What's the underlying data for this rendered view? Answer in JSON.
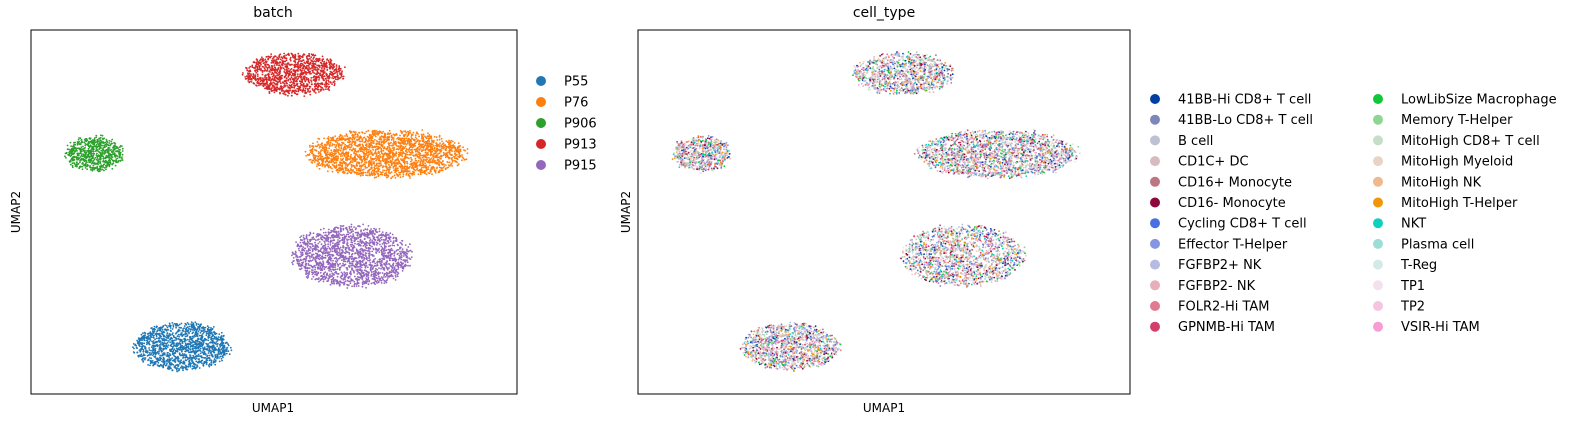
{
  "chart_data": [
    {
      "type": "scatter",
      "title": "batch",
      "xlabel": "UMAP1",
      "ylabel": "UMAP2",
      "xticks": false,
      "yticks": false,
      "legend_position": "right",
      "legend_columns": 1,
      "clusters": [
        {
          "label": "P55",
          "color": "#1f77b4",
          "cx": 0.31,
          "cy": 0.13,
          "rx": 0.1,
          "ry": 0.065,
          "n": 1400
        },
        {
          "label": "P76",
          "color": "#ff7f0e",
          "cx": 0.73,
          "cy": 0.66,
          "rx": 0.165,
          "ry": 0.065,
          "n": 2200
        },
        {
          "label": "P906",
          "color": "#2ca02c",
          "cx": 0.13,
          "cy": 0.66,
          "rx": 0.06,
          "ry": 0.048,
          "n": 700
        },
        {
          "label": "P913",
          "color": "#d62728",
          "cx": 0.54,
          "cy": 0.88,
          "rx": 0.105,
          "ry": 0.058,
          "n": 1200
        },
        {
          "label": "P915",
          "color": "#9467bd",
          "cx": 0.66,
          "cy": 0.38,
          "rx": 0.125,
          "ry": 0.085,
          "n": 1800
        }
      ],
      "legend": [
        {
          "label": "P55",
          "color": "#1f77b4"
        },
        {
          "label": "P76",
          "color": "#ff7f0e"
        },
        {
          "label": "P906",
          "color": "#2ca02c"
        },
        {
          "label": "P913",
          "color": "#d62728"
        },
        {
          "label": "P915",
          "color": "#9467bd"
        }
      ]
    },
    {
      "type": "scatter",
      "title": "cell_type",
      "xlabel": "UMAP1",
      "ylabel": "UMAP2",
      "xticks": false,
      "yticks": false,
      "legend_position": "right",
      "legend_columns": 2,
      "clusters": [
        {
          "batch": "P55",
          "cx": 0.31,
          "cy": 0.13,
          "rx": 0.1,
          "ry": 0.065,
          "n": 1400
        },
        {
          "batch": "P76",
          "cx": 0.73,
          "cy": 0.66,
          "rx": 0.165,
          "ry": 0.065,
          "n": 2200
        },
        {
          "batch": "P906",
          "cx": 0.13,
          "cy": 0.66,
          "rx": 0.06,
          "ry": 0.048,
          "n": 700
        },
        {
          "batch": "P913",
          "cx": 0.54,
          "cy": 0.88,
          "rx": 0.105,
          "ry": 0.058,
          "n": 1200
        },
        {
          "batch": "P915",
          "cx": 0.66,
          "cy": 0.38,
          "rx": 0.125,
          "ry": 0.085,
          "n": 1800
        }
      ],
      "legend": [
        {
          "label": "41BB-Hi CD8+ T cell",
          "color": "#023fa5"
        },
        {
          "label": "41BB-Lo CD8+ T cell",
          "color": "#7d87b9"
        },
        {
          "label": "B cell",
          "color": "#bec1d4"
        },
        {
          "label": "CD1C+ DC",
          "color": "#d6bcc0"
        },
        {
          "label": "CD16+ Monocyte",
          "color": "#bb7784"
        },
        {
          "label": "CD16- Monocyte",
          "color": "#8e063b"
        },
        {
          "label": "Cycling CD8+ T cell",
          "color": "#4a6fe3"
        },
        {
          "label": "Effector T-Helper",
          "color": "#8595e1"
        },
        {
          "label": "FGFBP2+ NK",
          "color": "#b5bbe3"
        },
        {
          "label": "FGFBP2- NK",
          "color": "#e6afb9"
        },
        {
          "label": "FOLR2-Hi TAM",
          "color": "#e07b91"
        },
        {
          "label": "GPNMB-Hi TAM",
          "color": "#d33f6a"
        },
        {
          "label": "LowLibSize Macrophage",
          "color": "#11c638"
        },
        {
          "label": "Memory T-Helper",
          "color": "#8dd593"
        },
        {
          "label": "MitoHigh CD8+ T cell",
          "color": "#c6dec7"
        },
        {
          "label": "MitoHigh Myeloid",
          "color": "#ead3c6"
        },
        {
          "label": "MitoHigh NK",
          "color": "#f0b98d"
        },
        {
          "label": "MitoHigh T-Helper",
          "color": "#ef9708"
        },
        {
          "label": "NKT",
          "color": "#0fcfc0"
        },
        {
          "label": "Plasma cell",
          "color": "#9cded6"
        },
        {
          "label": "T-Reg",
          "color": "#d5eae7"
        },
        {
          "label": "TP1",
          "color": "#f3e1eb"
        },
        {
          "label": "TP2",
          "color": "#f6c4e1"
        },
        {
          "label": "VSIR-Hi TAM",
          "color": "#f79cd4"
        }
      ]
    }
  ]
}
